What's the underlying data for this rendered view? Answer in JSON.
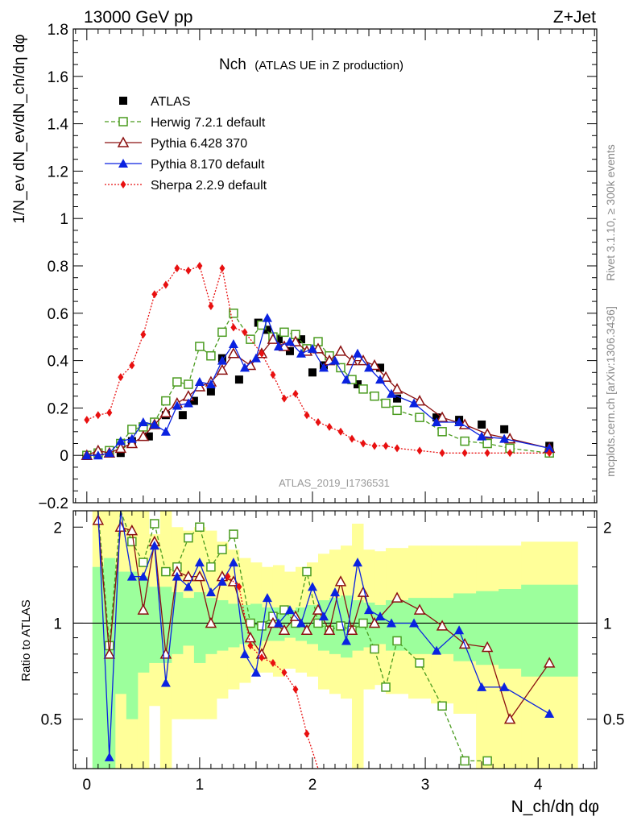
{
  "header": {
    "left": "13000 GeV pp",
    "right": "Z+Jet"
  },
  "title": {
    "main": "Nch",
    "sub": "(ATLAS UE in Z production)"
  },
  "axes": {
    "ylabel_main": "1/N_ev dN_ev/dN_ch/dη dφ",
    "ylabel_ratio": "Ratio to ATLAS",
    "xlabel": "N_ch/dη dφ"
  },
  "side_texts": {
    "rivet": "Rivet 3.1.10, ≥ 300k events",
    "mcplots": "mcplots.cern.ch [arXiv:1306.3436]"
  },
  "analysis_id": "ATLAS_2019_I1736531",
  "colors": {
    "atlas": "#000000",
    "herwig": "#4a9b1f",
    "pythia6": "#8b1010",
    "pythia8": "#0a22e0",
    "sherpa": "#e81010",
    "band_inner": "#9cff9c",
    "band_outer": "#ffff99"
  },
  "chart_data": [
    {
      "type": "scatter",
      "panel": "main",
      "title": "Nch (ATLAS UE in Z production)",
      "xlabel": "N_ch/dη dφ",
      "ylabel": "1/N_ev dN_ev/dN_ch/dη dφ",
      "xlim": [
        -0.12,
        4.52
      ],
      "ylim": [
        -0.2,
        1.8
      ],
      "xticks": [
        "0",
        "1",
        "2",
        "3",
        "4"
      ],
      "yticks": [
        "−0.2",
        "0",
        "0.2",
        "0.4",
        "0.6",
        "0.8",
        "1",
        "1.2",
        "1.4",
        "1.6",
        "1.8"
      ],
      "legend": [
        "ATLAS",
        "Herwig 7.2.1 default",
        "Pythia 6.428 370",
        "Pythia 8.170 default",
        "Sherpa 2.2.9 default"
      ],
      "series": [
        {
          "name": "ATLAS",
          "marker": "square-filled",
          "line": "none",
          "x": [
            0.0,
            0.1,
            0.2,
            0.3,
            0.4,
            0.55,
            0.7,
            0.85,
            0.95,
            1.1,
            1.2,
            1.35,
            1.45,
            1.52,
            1.6,
            1.7,
            1.8,
            1.9,
            2.0,
            2.1,
            2.25,
            2.4,
            2.6,
            2.75,
            3.1,
            3.3,
            3.5,
            3.7,
            4.1
          ],
          "y": [
            0.0,
            0.01,
            0.02,
            0.01,
            0.06,
            0.08,
            0.17,
            0.17,
            0.23,
            0.27,
            0.41,
            0.32,
            0.49,
            0.56,
            0.53,
            0.49,
            0.44,
            0.49,
            0.35,
            0.38,
            0.37,
            0.3,
            0.37,
            0.24,
            0.16,
            0.15,
            0.13,
            0.11,
            0.04
          ]
        },
        {
          "name": "Herwig 7.2.1 default",
          "marker": "square-open",
          "line": "dashed",
          "x": [
            0.0,
            0.1,
            0.2,
            0.3,
            0.4,
            0.5,
            0.6,
            0.7,
            0.8,
            0.9,
            1.0,
            1.1,
            1.2,
            1.3,
            1.45,
            1.55,
            1.65,
            1.75,
            1.85,
            1.95,
            2.05,
            2.15,
            2.25,
            2.35,
            2.45,
            2.55,
            2.65,
            2.75,
            2.95,
            3.15,
            3.35,
            3.55,
            3.75,
            4.1
          ],
          "y": [
            0.0,
            0.01,
            0.02,
            0.05,
            0.11,
            0.12,
            0.14,
            0.23,
            0.31,
            0.3,
            0.46,
            0.42,
            0.52,
            0.6,
            0.49,
            0.55,
            0.5,
            0.52,
            0.51,
            0.45,
            0.48,
            0.42,
            0.37,
            0.32,
            0.28,
            0.25,
            0.22,
            0.19,
            0.16,
            0.1,
            0.06,
            0.05,
            0.03,
            0.01
          ]
        },
        {
          "name": "Pythia 6.428 370",
          "marker": "triangle-open",
          "line": "solid",
          "x": [
            0.0,
            0.1,
            0.2,
            0.3,
            0.4,
            0.5,
            0.6,
            0.7,
            0.8,
            0.9,
            1.0,
            1.1,
            1.2,
            1.3,
            1.45,
            1.55,
            1.65,
            1.75,
            1.85,
            1.95,
            2.05,
            2.15,
            2.25,
            2.35,
            2.45,
            2.55,
            2.65,
            2.75,
            2.95,
            3.15,
            3.35,
            3.55,
            3.75,
            4.1
          ],
          "y": [
            0.0,
            0.02,
            0.01,
            0.03,
            0.05,
            0.08,
            0.13,
            0.18,
            0.22,
            0.25,
            0.29,
            0.31,
            0.36,
            0.43,
            0.38,
            0.43,
            0.49,
            0.46,
            0.48,
            0.44,
            0.45,
            0.4,
            0.44,
            0.4,
            0.4,
            0.38,
            0.33,
            0.28,
            0.23,
            0.16,
            0.13,
            0.09,
            0.07,
            0.03
          ]
        },
        {
          "name": "Pythia 8.170 default",
          "marker": "triangle-filled",
          "line": "solid",
          "x": [
            0.0,
            0.1,
            0.2,
            0.3,
            0.4,
            0.5,
            0.6,
            0.7,
            0.8,
            0.9,
            1.0,
            1.1,
            1.2,
            1.3,
            1.4,
            1.5,
            1.6,
            1.7,
            1.8,
            1.9,
            2.0,
            2.1,
            2.2,
            2.3,
            2.4,
            2.5,
            2.6,
            2.7,
            2.9,
            3.1,
            3.3,
            3.5,
            3.7,
            4.1
          ],
          "y": [
            0.0,
            0.0,
            0.01,
            0.06,
            0.07,
            0.14,
            0.13,
            0.1,
            0.21,
            0.22,
            0.31,
            0.3,
            0.4,
            0.47,
            0.37,
            0.41,
            0.58,
            0.46,
            0.48,
            0.43,
            0.45,
            0.37,
            0.4,
            0.32,
            0.43,
            0.37,
            0.32,
            0.26,
            0.22,
            0.14,
            0.14,
            0.08,
            0.07,
            0.03
          ]
        },
        {
          "name": "Sherpa 2.2.9 default",
          "marker": "diamond-filled",
          "line": "dotted",
          "x": [
            0.0,
            0.1,
            0.2,
            0.3,
            0.4,
            0.5,
            0.6,
            0.7,
            0.8,
            0.9,
            1.0,
            1.1,
            1.2,
            1.3,
            1.4,
            1.55,
            1.65,
            1.75,
            1.85,
            1.95,
            2.05,
            2.15,
            2.25,
            2.35,
            2.45,
            2.55,
            2.65,
            2.75,
            2.95,
            3.15,
            3.35,
            3.55,
            3.75,
            4.1
          ],
          "y": [
            0.15,
            0.17,
            0.18,
            0.33,
            0.38,
            0.51,
            0.68,
            0.72,
            0.79,
            0.78,
            0.8,
            0.63,
            0.79,
            0.54,
            0.52,
            0.43,
            0.34,
            0.24,
            0.26,
            0.17,
            0.14,
            0.12,
            0.1,
            0.07,
            0.05,
            0.04,
            0.04,
            0.03,
            0.02,
            0.01,
            0.01,
            0.01,
            0.01,
            0.01
          ]
        }
      ]
    },
    {
      "type": "scatter",
      "panel": "ratio",
      "xlabel": "N_ch/dη dφ",
      "ylabel": "Ratio to ATLAS",
      "xlim": [
        -0.12,
        4.52
      ],
      "ylim": [
        0.35,
        2.25
      ],
      "yticks": [
        "0.5",
        "1",
        "2"
      ],
      "bands": {
        "x_edges": [
          0.05,
          0.15,
          0.25,
          0.35,
          0.45,
          0.55,
          0.65,
          0.75,
          0.85,
          0.95,
          1.05,
          1.15,
          1.25,
          1.35,
          1.45,
          1.55,
          1.65,
          1.75,
          1.85,
          1.95,
          2.05,
          2.15,
          2.25,
          2.35,
          2.45,
          2.55,
          2.65,
          2.85,
          3.05,
          3.25,
          3.45,
          3.65,
          3.85,
          4.35
        ],
        "inner_low": [
          0.35,
          0.35,
          0.6,
          0.5,
          0.7,
          0.75,
          0.75,
          0.8,
          0.85,
          0.75,
          0.8,
          0.82,
          0.84,
          0.86,
          0.85,
          0.88,
          0.88,
          0.9,
          0.88,
          0.86,
          0.82,
          0.8,
          0.78,
          0.82,
          0.84,
          0.86,
          0.82,
          0.8,
          0.8,
          0.76,
          0.74,
          0.72,
          0.68,
          0.68
        ],
        "inner_high": [
          1.5,
          1.6,
          1.45,
          1.45,
          1.4,
          1.3,
          1.3,
          1.25,
          1.2,
          1.25,
          1.2,
          1.18,
          1.15,
          1.14,
          1.15,
          1.12,
          1.12,
          1.1,
          1.12,
          1.14,
          1.18,
          1.2,
          1.22,
          1.18,
          1.16,
          1.14,
          1.18,
          1.2,
          1.2,
          1.24,
          1.26,
          1.28,
          1.32,
          1.32
        ],
        "outer_low": [
          0.35,
          0.35,
          0.35,
          0.35,
          0.35,
          0.55,
          0.35,
          0.5,
          0.5,
          0.5,
          0.5,
          0.58,
          0.62,
          0.65,
          0.7,
          0.7,
          0.68,
          0.72,
          0.7,
          0.68,
          0.62,
          0.6,
          0.58,
          0.35,
          0.62,
          0.64,
          0.6,
          0.58,
          0.56,
          0.52,
          0.35,
          0.35,
          0.35,
          0.35
        ],
        "outer_high": [
          2.25,
          2.25,
          2.25,
          2.25,
          2.25,
          1.9,
          2.25,
          2.0,
          1.95,
          2.0,
          1.95,
          1.8,
          1.7,
          1.6,
          1.55,
          1.5,
          1.52,
          1.45,
          1.5,
          1.55,
          1.65,
          1.7,
          1.75,
          2.05,
          1.7,
          1.68,
          1.72,
          1.75,
          1.75,
          1.75,
          1.75,
          1.75,
          1.8,
          1.8
        ]
      },
      "series": [
        {
          "name": "Herwig 7.2.1 default",
          "x": [
            0.1,
            0.2,
            0.3,
            0.4,
            0.5,
            0.6,
            0.7,
            0.8,
            0.9,
            1.0,
            1.1,
            1.2,
            1.3,
            1.45,
            1.55,
            1.65,
            1.75,
            1.85,
            1.95,
            2.05,
            2.15,
            2.25,
            2.35,
            2.45,
            2.55,
            2.65,
            2.75,
            2.95,
            3.15,
            3.35,
            3.55
          ],
          "y": [
            2.25,
            0.85,
            2.25,
            1.8,
            1.55,
            2.05,
            1.45,
            1.5,
            1.85,
            2.0,
            1.5,
            1.7,
            1.9,
            1.0,
            0.98,
            1.05,
            1.1,
            1.0,
            1.45,
            1.0,
            0.95,
            0.98,
            0.95,
            1.0,
            0.83,
            0.63,
            0.88,
            0.75,
            0.55,
            0.37,
            0.37
          ]
        },
        {
          "name": "Pythia 6.428 370",
          "x": [
            0.1,
            0.2,
            0.3,
            0.4,
            0.5,
            0.6,
            0.7,
            0.8,
            0.9,
            1.0,
            1.1,
            1.2,
            1.3,
            1.45,
            1.55,
            1.65,
            1.75,
            1.85,
            1.95,
            2.05,
            2.15,
            2.25,
            2.35,
            2.45,
            2.55,
            2.75,
            2.95,
            3.15,
            3.35,
            3.55,
            3.75,
            4.1
          ],
          "y": [
            2.1,
            0.8,
            2.0,
            1.95,
            1.1,
            1.8,
            0.8,
            1.45,
            1.4,
            1.4,
            1.0,
            1.4,
            1.35,
            0.9,
            0.8,
            1.0,
            0.95,
            1.05,
            0.95,
            1.1,
            0.95,
            1.35,
            0.95,
            1.25,
            1.0,
            1.2,
            1.1,
            0.98,
            0.86,
            0.84,
            0.5,
            0.75
          ]
        },
        {
          "name": "Pythia 8.170 default",
          "x": [
            0.1,
            0.2,
            0.3,
            0.4,
            0.5,
            0.6,
            0.7,
            0.8,
            0.9,
            1.0,
            1.1,
            1.2,
            1.3,
            1.4,
            1.5,
            1.6,
            1.7,
            1.8,
            1.9,
            2.0,
            2.1,
            2.2,
            2.3,
            2.4,
            2.5,
            2.6,
            2.7,
            2.9,
            3.1,
            3.3,
            3.5,
            3.7,
            4.1
          ],
          "y": [
            2.25,
            0.38,
            2.25,
            1.4,
            1.4,
            1.75,
            0.65,
            1.4,
            1.3,
            1.55,
            1.25,
            1.35,
            1.55,
            0.8,
            0.7,
            1.2,
            1.0,
            1.1,
            1.0,
            1.3,
            1.05,
            1.25,
            0.88,
            1.55,
            1.1,
            1.05,
            1.0,
            1.0,
            0.82,
            0.95,
            0.63,
            0.63,
            0.52
          ]
        },
        {
          "name": "Sherpa 2.2.9 default",
          "x": [
            1.25,
            1.35,
            1.45,
            1.55,
            1.65,
            1.75,
            1.85,
            1.95,
            2.05
          ],
          "y": [
            1.4,
            1.3,
            0.85,
            0.78,
            0.75,
            0.7,
            0.62,
            0.45,
            0.35
          ]
        }
      ]
    }
  ]
}
